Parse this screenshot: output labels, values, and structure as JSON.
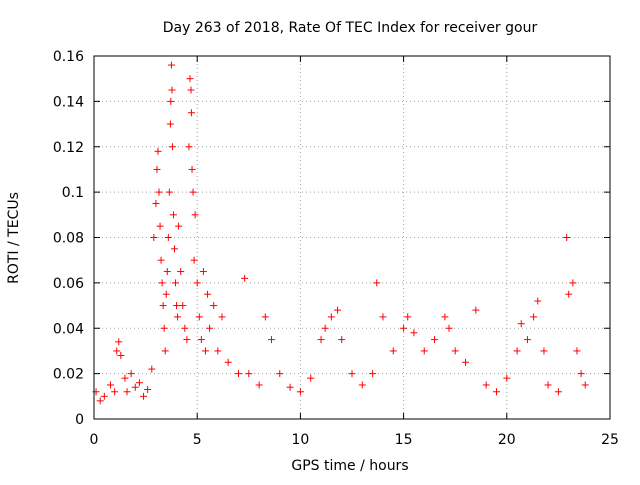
{
  "chart_data": {
    "type": "scatter",
    "title": "Day 263 of 2018, Rate Of TEC Index for receiver gour",
    "xlabel": "GPS time / hours",
    "ylabel": "ROTI / TECUs",
    "xlim": [
      0,
      25
    ],
    "ylim": [
      0,
      0.16
    ],
    "xticks": [
      0,
      5,
      10,
      15,
      20,
      25
    ],
    "xtick_labels": [
      "0",
      "5",
      "10",
      "15",
      "20",
      "25"
    ],
    "yticks": [
      0,
      0.02,
      0.04,
      0.06,
      0.08,
      0.1,
      0.12,
      0.14,
      0.16
    ],
    "ytick_labels": [
      "0",
      "0.02",
      "0.04",
      "0.06",
      "0.08",
      "0.1",
      "0.12",
      "0.14",
      "0.16"
    ],
    "grid": true,
    "grid_style": "dotted",
    "marker": "+",
    "color": "#ff0000",
    "series": [
      {
        "name": "",
        "points": [
          [
            0.1,
            0.012
          ],
          [
            0.3,
            0.008
          ],
          [
            0.5,
            0.01
          ],
          [
            0.8,
            0.015
          ],
          [
            1.0,
            0.012
          ],
          [
            1.1,
            0.03
          ],
          [
            1.2,
            0.034
          ],
          [
            1.3,
            0.028
          ],
          [
            1.5,
            0.018
          ],
          [
            1.6,
            0.012
          ],
          [
            1.8,
            0.02
          ],
          [
            2.0,
            0.014
          ],
          [
            2.2,
            0.016
          ],
          [
            2.4,
            0.01
          ],
          [
            2.6,
            0.013
          ],
          [
            2.8,
            0.022
          ],
          [
            2.9,
            0.08
          ],
          [
            3.0,
            0.095
          ],
          [
            3.05,
            0.11
          ],
          [
            3.1,
            0.118
          ],
          [
            3.15,
            0.1
          ],
          [
            3.2,
            0.085
          ],
          [
            3.25,
            0.07
          ],
          [
            3.3,
            0.06
          ],
          [
            3.35,
            0.05
          ],
          [
            3.4,
            0.04
          ],
          [
            3.45,
            0.03
          ],
          [
            3.5,
            0.055
          ],
          [
            3.55,
            0.065
          ],
          [
            3.6,
            0.08
          ],
          [
            3.65,
            0.1
          ],
          [
            3.7,
            0.13
          ],
          [
            3.72,
            0.14
          ],
          [
            3.75,
            0.156
          ],
          [
            3.78,
            0.145
          ],
          [
            3.8,
            0.12
          ],
          [
            3.85,
            0.09
          ],
          [
            3.9,
            0.075
          ],
          [
            3.95,
            0.06
          ],
          [
            4.0,
            0.05
          ],
          [
            4.05,
            0.045
          ],
          [
            4.1,
            0.085
          ],
          [
            4.2,
            0.065
          ],
          [
            4.3,
            0.05
          ],
          [
            4.4,
            0.04
          ],
          [
            4.5,
            0.035
          ],
          [
            4.6,
            0.12
          ],
          [
            4.65,
            0.15
          ],
          [
            4.7,
            0.145
          ],
          [
            4.72,
            0.135
          ],
          [
            4.75,
            0.11
          ],
          [
            4.8,
            0.1
          ],
          [
            4.85,
            0.07
          ],
          [
            4.9,
            0.09
          ],
          [
            5.0,
            0.06
          ],
          [
            5.1,
            0.045
          ],
          [
            5.2,
            0.035
          ],
          [
            5.3,
            0.065
          ],
          [
            5.4,
            0.03
          ],
          [
            5.5,
            0.055
          ],
          [
            5.6,
            0.04
          ],
          [
            5.8,
            0.05
          ],
          [
            6.0,
            0.03
          ],
          [
            6.2,
            0.045
          ],
          [
            6.5,
            0.025
          ],
          [
            7.0,
            0.02
          ],
          [
            7.3,
            0.062
          ],
          [
            7.5,
            0.02
          ],
          [
            8.0,
            0.015
          ],
          [
            8.3,
            0.045
          ],
          [
            8.6,
            0.035
          ],
          [
            9.0,
            0.02
          ],
          [
            9.5,
            0.014
          ],
          [
            10.0,
            0.012
          ],
          [
            10.5,
            0.018
          ],
          [
            11.0,
            0.035
          ],
          [
            11.2,
            0.04
          ],
          [
            11.5,
            0.045
          ],
          [
            11.8,
            0.048
          ],
          [
            12.0,
            0.035
          ],
          [
            12.5,
            0.02
          ],
          [
            13.0,
            0.015
          ],
          [
            13.5,
            0.02
          ],
          [
            13.7,
            0.06
          ],
          [
            14.0,
            0.045
          ],
          [
            14.5,
            0.03
          ],
          [
            15.0,
            0.04
          ],
          [
            15.2,
            0.045
          ],
          [
            15.5,
            0.038
          ],
          [
            16.0,
            0.03
          ],
          [
            16.5,
            0.035
          ],
          [
            17.0,
            0.045
          ],
          [
            17.2,
            0.04
          ],
          [
            17.5,
            0.03
          ],
          [
            18.0,
            0.025
          ],
          [
            18.5,
            0.048
          ],
          [
            19.0,
            0.015
          ],
          [
            19.5,
            0.012
          ],
          [
            20.0,
            0.018
          ],
          [
            20.5,
            0.03
          ],
          [
            20.7,
            0.042
          ],
          [
            21.0,
            0.035
          ],
          [
            21.3,
            0.045
          ],
          [
            21.5,
            0.052
          ],
          [
            21.8,
            0.03
          ],
          [
            22.0,
            0.015
          ],
          [
            22.5,
            0.012
          ],
          [
            22.9,
            0.08
          ],
          [
            23.0,
            0.055
          ],
          [
            23.2,
            0.06
          ],
          [
            23.4,
            0.03
          ],
          [
            23.6,
            0.02
          ],
          [
            23.8,
            0.015
          ]
        ]
      }
    ]
  }
}
